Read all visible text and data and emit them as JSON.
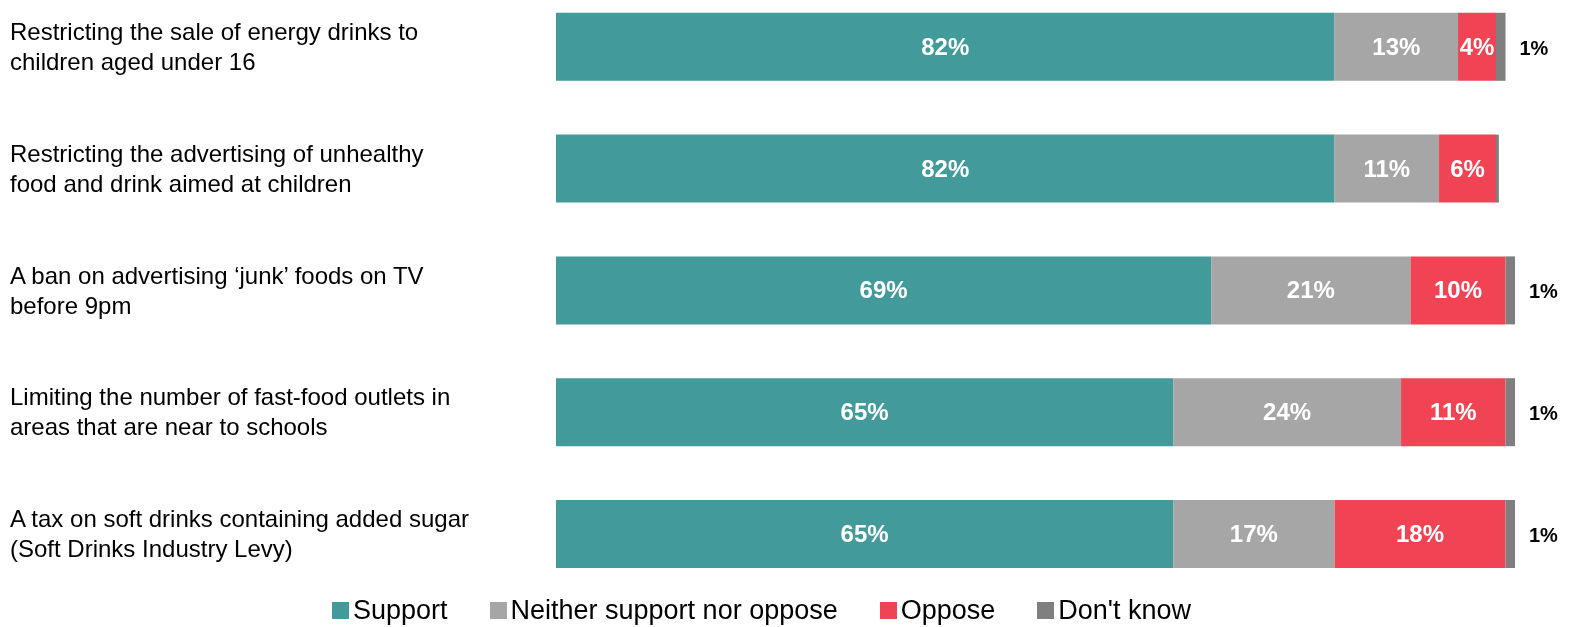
{
  "chart_data": {
    "type": "bar",
    "orientation": "horizontal",
    "stacked": true,
    "legend": "bottom",
    "categories": [
      "Restricting the sale of energy drinks to children aged under 16",
      "Restricting the advertising of unhealthy food and drink aimed at children",
      "A ban on advertising ‘junk’ foods on TV before 9pm",
      "Limiting the number of fast-food outlets in areas that are near to schools",
      "A tax on soft drinks containing added sugar (Soft Drinks Industry Levy)"
    ],
    "series": [
      {
        "name": "Support",
        "color": "#429b9a",
        "values": [
          82,
          82,
          69,
          65,
          65
        ],
        "value_labels": [
          "82%",
          "82%",
          "69%",
          "65%",
          "65%"
        ]
      },
      {
        "name": "Neither support nor oppose",
        "color": "#a6a6a6",
        "values": [
          13,
          11,
          21,
          24,
          17
        ],
        "value_labels": [
          "13%",
          "11%",
          "21%",
          "24%",
          "17%"
        ]
      },
      {
        "name": "Oppose",
        "color": "#f04455",
        "values": [
          4,
          6,
          10,
          11,
          18
        ],
        "value_labels": [
          "4%",
          "6%",
          "10%",
          "11%",
          "18%"
        ]
      },
      {
        "name": "Don't know",
        "color": "#7f7f7f",
        "values": [
          1,
          0.3,
          1,
          1,
          1
        ],
        "value_labels": [
          "1%",
          null,
          "1%",
          "1%",
          "1%"
        ]
      }
    ]
  }
}
